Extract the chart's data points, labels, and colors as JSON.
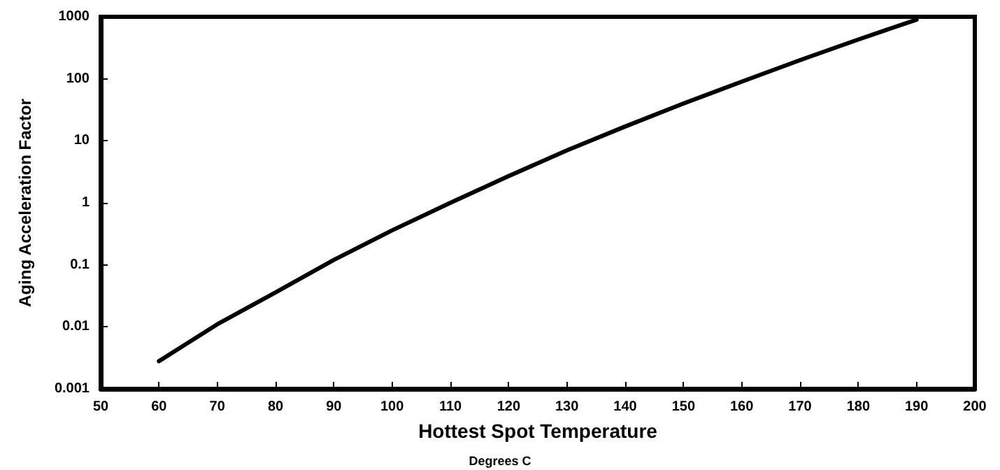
{
  "chart_data": {
    "type": "line",
    "xlabel": "Hottest Spot Temperature",
    "ylabel": "Aging Acceleration Factor",
    "annotations": [
      "Degrees C"
    ],
    "x": [
      60,
      70,
      80,
      90,
      100,
      110,
      120,
      130,
      140,
      150,
      160,
      170,
      180,
      190
    ],
    "series": [
      {
        "color": "#000000",
        "values": [
          0.0028,
          0.011,
          0.036,
          0.12,
          0.36,
          1,
          2.7,
          7,
          17,
          40,
          90,
          200,
          430,
          900
        ]
      }
    ],
    "xlim": [
      50,
      200
    ],
    "xticks": [
      50,
      60,
      70,
      80,
      90,
      100,
      110,
      120,
      130,
      140,
      150,
      160,
      170,
      180,
      190,
      200
    ],
    "ylim": [
      0.001,
      1000
    ],
    "yticks": [
      0.001,
      0.01,
      0.1,
      1,
      10,
      100,
      1000
    ],
    "log": "y",
    "grid": false,
    "marker": "none",
    "line_style": "solid"
  }
}
